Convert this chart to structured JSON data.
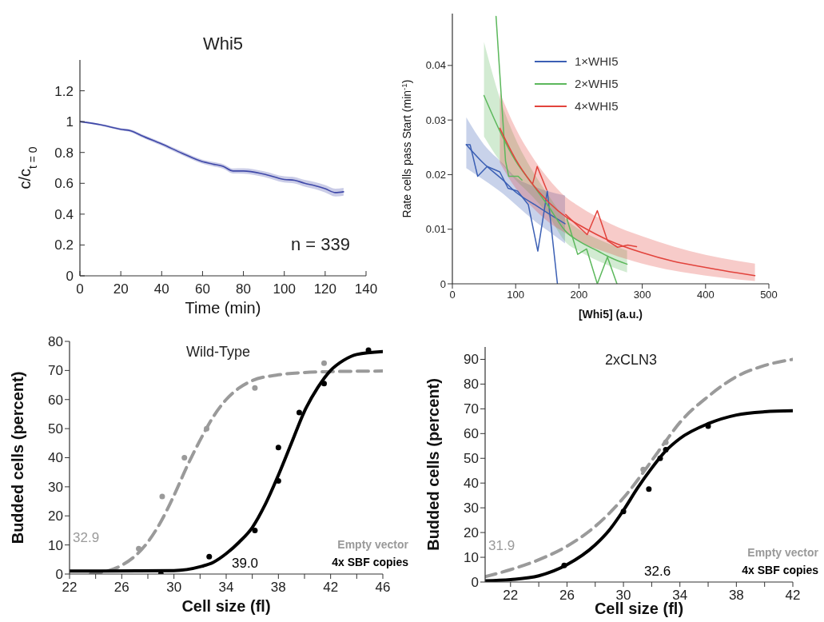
{
  "chart_data": [
    {
      "type": "line",
      "title": "Whi5",
      "xlabel": "Time (min)",
      "ylabel": "c/c$_{t = 0}$",
      "xlim": [
        0,
        140
      ],
      "ylim": [
        0,
        1.4
      ],
      "xticks": [
        0,
        20,
        40,
        60,
        80,
        100,
        120,
        140
      ],
      "yticks": [
        0,
        0.2,
        0.4,
        0.6,
        0.8,
        1,
        1.2
      ],
      "annotations": [
        "n = 339"
      ],
      "series": [
        {
          "type": "line",
          "color": "#3f48a8",
          "x": [
            0,
            10,
            20,
            25,
            30,
            40,
            50,
            60,
            65,
            70,
            75,
            80,
            90,
            100,
            105,
            110,
            115,
            120,
            125,
            129
          ],
          "values": [
            1.0,
            0.98,
            0.95,
            0.94,
            0.91,
            0.855,
            0.795,
            0.74,
            0.725,
            0.71,
            0.68,
            0.68,
            0.66,
            0.625,
            0.62,
            0.6,
            0.585,
            0.565,
            0.54,
            0.545
          ],
          "lower": [
            0.995,
            0.973,
            0.942,
            0.931,
            0.9,
            0.844,
            0.783,
            0.727,
            0.711,
            0.695,
            0.664,
            0.663,
            0.642,
            0.605,
            0.599,
            0.578,
            0.562,
            0.541,
            0.515,
            0.52
          ],
          "upper": [
            1.005,
            0.987,
            0.958,
            0.949,
            0.92,
            0.866,
            0.807,
            0.753,
            0.739,
            0.725,
            0.696,
            0.697,
            0.678,
            0.645,
            0.641,
            0.622,
            0.608,
            0.589,
            0.565,
            0.57
          ]
        }
      ]
    },
    {
      "type": "line",
      "xlabel": "[Whi5] (a.u.)",
      "ylabel": "Rate cells pass Start (min$^{-1}$)",
      "xlim": [
        0,
        500
      ],
      "ylim": [
        0,
        0.0495
      ],
      "xticks": [
        0,
        100,
        200,
        300,
        400,
        500
      ],
      "yticks": [
        0,
        0.01,
        0.02,
        0.03,
        0.04
      ],
      "legend": "top left",
      "series": [
        {
          "type": "line",
          "color": "#3b5fb4",
          "x": [
            22,
            28,
            40,
            55,
            75,
            88,
            103,
            120,
            135,
            150,
            166
          ],
          "values": [
            0.0255,
            0.0255,
            0.0197,
            0.0215,
            0.0205,
            0.0175,
            0.017,
            0.0145,
            0.006,
            0.017,
            0
          ]
        },
        {
          "type": "line",
          "color": "#5cb85c",
          "x": [
            69,
            84,
            89,
            104,
            110,
            145,
            181,
            198,
            212,
            229,
            245,
            260
          ],
          "values": [
            0.049,
            0.0225,
            0.0197,
            0.0197,
            0.019,
            null,
            0.0119,
            0.0054,
            0.0064,
            0,
            0.0049,
            0
          ]
        },
        {
          "type": "line",
          "color": "#e2433c",
          "x": [
            127,
            134,
            149,
            165,
            179,
            213,
            229,
            245,
            261,
            277,
            291
          ],
          "values": [
            0.0184,
            0.0215,
            0.0172,
            null,
            0.0127,
            0.009,
            0.0134,
            0.0079,
            0.0067,
            0.0071,
            0.0068
          ]
        },
        {
          "type": "line",
          "name": "1×WHI5",
          "color": "#3b5fb4",
          "x": [
            22,
            50,
            80,
            100,
            130,
            150,
            178
          ],
          "values": [
            0.0255,
            0.022,
            0.019,
            0.0168,
            0.0145,
            0.013,
            0.011
          ],
          "lower": [
            0.0212,
            0.019,
            0.0165,
            0.0145,
            0.0115,
            0.0098,
            0.0074
          ],
          "upper": [
            0.0305,
            0.0255,
            0.022,
            0.0195,
            0.0178,
            0.017,
            0.0162
          ]
        },
        {
          "type": "line",
          "name": "2×WHI5",
          "color": "#5cb85c",
          "x": [
            50,
            75,
            100,
            125,
            150,
            180,
            200,
            230,
            250,
            276
          ],
          "values": [
            0.0345,
            0.028,
            0.0225,
            0.0185,
            0.0145,
            0.0095,
            0.0078,
            0.006,
            0.0048,
            0.0036
          ],
          "lower": [
            0.027,
            0.0225,
            0.019,
            0.0162,
            0.0128,
            0.0075,
            0.006,
            0.0042,
            0.0032,
            0.0021
          ],
          "upper": [
            0.0443,
            0.034,
            0.0265,
            0.021,
            0.0165,
            0.0118,
            0.01,
            0.0082,
            0.0072,
            0.0061
          ]
        },
        {
          "type": "line",
          "name": "4×WHI5",
          "color": "#e2433c",
          "x": [
            75,
            100,
            125,
            150,
            180,
            200,
            250,
            300,
            350,
            400,
            450,
            478
          ],
          "values": [
            0.0285,
            0.0228,
            0.0185,
            0.0152,
            0.0122,
            0.0108,
            0.0078,
            0.0057,
            0.0041,
            0.003,
            0.002,
            0.0015
          ],
          "lower": [
            0.0222,
            0.0175,
            0.0142,
            0.0115,
            0.0092,
            0.0078,
            0.0055,
            0.0037,
            0.0024,
            0.0015,
            0.0008,
            0.0005
          ],
          "upper": [
            0.035,
            0.0285,
            0.0235,
            0.0195,
            0.0158,
            0.0142,
            0.011,
            0.0087,
            0.0068,
            0.0053,
            0.0042,
            0.0037
          ]
        }
      ]
    },
    {
      "type": "line",
      "title": "Wild-Type",
      "xlabel": "Cell size (fl)",
      "ylabel": "Budded cells (percent)",
      "xlim": [
        22,
        46
      ],
      "ylim": [
        0,
        80
      ],
      "xticks": [
        22,
        {
          "value": 24,
          "label": null
        },
        26,
        {
          "value": 28,
          "label": null
        },
        30,
        {
          "value": 32,
          "label": null
        },
        34,
        {
          "value": 36,
          "label": null
        },
        38,
        {
          "value": 40,
          "label": null
        },
        42,
        {
          "value": 44,
          "label": null
        },
        46
      ],
      "yticks": [
        0,
        10,
        20,
        30,
        40,
        50,
        60,
        70,
        80
      ],
      "legend": "bottom right",
      "annotations": [
        "32.9",
        "39.0"
      ],
      "series": [
        {
          "type": "line",
          "name": "Empty vector",
          "color": "#9a9a9a",
          "line_style": "dashed",
          "x": [
            23.6,
            26,
            28,
            29,
            30,
            31,
            32,
            33,
            34,
            35,
            36,
            38,
            40,
            42,
            46
          ],
          "values": [
            0,
            3,
            11,
            18,
            27,
            37,
            46,
            54,
            60,
            64,
            66.5,
            68.5,
            69.3,
            69.6,
            69.8
          ]
        },
        {
          "type": "line",
          "name": "4x SBF copies",
          "color": "#000000",
          "line_style": "solid",
          "x": [
            22,
            30,
            32,
            33,
            34,
            35,
            36,
            37,
            38,
            39,
            40,
            41,
            42,
            43,
            44,
            46
          ],
          "values": [
            1,
            1.2,
            2.5,
            4,
            7,
            11,
            16,
            24,
            34,
            45,
            56,
            64,
            70,
            73.5,
            75.5,
            76.5
          ]
        },
        {
          "type": "scatter",
          "color": "#9a9a9a",
          "marker": "circle",
          "x": [
            27.3,
            29.1,
            30.8,
            32.5,
            36.2,
            41.5
          ],
          "values": [
            8.7,
            26.7,
            40,
            50,
            64,
            72.5
          ]
        },
        {
          "type": "scatter",
          "color": "#000000",
          "marker": "circle",
          "x": [
            29,
            32.7,
            36.2,
            38,
            38,
            39.6,
            41.5,
            44.9
          ],
          "values": [
            0,
            6,
            15,
            32,
            43.5,
            55.5,
            65.5,
            77
          ]
        }
      ]
    },
    {
      "type": "line",
      "title": "2xCLN3",
      "xlabel": "Cell size (fl)",
      "ylabel": "Budded cells (percent)",
      "xlim": [
        20.2,
        42
      ],
      "ylim": [
        0,
        95
      ],
      "xticks": [
        22,
        {
          "value": 24,
          "label": null
        },
        26,
        {
          "value": 28,
          "label": null
        },
        30,
        {
          "value": 32,
          "label": null
        },
        34,
        {
          "value": 36,
          "label": null
        },
        38,
        {
          "value": 40,
          "label": null
        },
        42
      ],
      "yticks": [
        0,
        10,
        20,
        30,
        40,
        50,
        60,
        70,
        80,
        90
      ],
      "legend": "bottom right",
      "annotations": [
        "31.9",
        "32.6"
      ],
      "series": [
        {
          "type": "line",
          "name": "Empty vector",
          "color": "#9a9a9a",
          "line_style": "dashed",
          "x": [
            20.2,
            22,
            24,
            26,
            28,
            30,
            32,
            33,
            34,
            36,
            38,
            40,
            42
          ],
          "values": [
            2.2,
            5,
            9,
            14.5,
            22.5,
            34,
            49,
            57,
            64.5,
            75,
            83,
            87.5,
            90
          ]
        },
        {
          "type": "line",
          "name": "4x SBF copies",
          "color": "#000000",
          "line_style": "solid",
          "x": [
            20.2,
            22,
            24,
            26,
            28,
            29,
            30,
            31,
            32,
            33,
            34,
            36,
            38,
            40,
            42
          ],
          "values": [
            0.5,
            1,
            2.5,
            7,
            15,
            21,
            29,
            38,
            46,
            53,
            58,
            64,
            67.5,
            68.8,
            69.2
          ]
        },
        {
          "type": "scatter",
          "color": "#9a9a9a",
          "marker": "circle",
          "x": [
            31.4,
            33
          ],
          "values": [
            45.5,
            56.5
          ]
        },
        {
          "type": "scatter",
          "color": "#000000",
          "marker": "circle",
          "x": [
            25.8,
            30,
            31.8,
            32.6,
            33,
            36
          ],
          "values": [
            6.7,
            28.5,
            37.6,
            50,
            53.5,
            63
          ]
        }
      ]
    }
  ]
}
